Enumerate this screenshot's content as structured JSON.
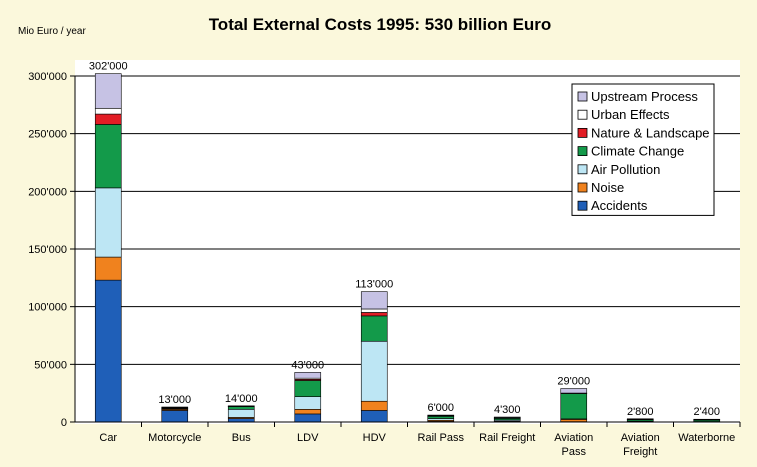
{
  "chart_data": {
    "type": "bar",
    "stacked": true,
    "title": "Total External Costs 1995: 530 billion Euro",
    "ylabel": "Mio Euro / year",
    "xlabel": "",
    "ylim": [
      0,
      300000
    ],
    "yticks": [
      0,
      50000,
      100000,
      150000,
      200000,
      250000,
      300000
    ],
    "ytick_labels": [
      "0",
      "50'000",
      "100'000",
      "150'000",
      "200'000",
      "250'000",
      "300'000"
    ],
    "grid": true,
    "legend_position": "top-right",
    "categories": [
      [
        "Car"
      ],
      [
        "Motorcycle"
      ],
      [
        "Bus"
      ],
      [
        "LDV"
      ],
      [
        "HDV"
      ],
      [
        "Rail Pass"
      ],
      [
        "Rail Freight"
      ],
      [
        "Aviation",
        "Pass"
      ],
      [
        "Aviation",
        "Freight"
      ],
      [
        "Waterborne"
      ]
    ],
    "total_labels": [
      "302'000",
      "13'000",
      "14'000",
      "43'000",
      "113'000",
      "6'000",
      "4'300",
      "29'000",
      "2'800",
      "2'400"
    ],
    "series": [
      {
        "name": "Accidents",
        "color": "#1f5fb8",
        "values": [
          123000,
          10000,
          3000,
          7000,
          10000,
          500,
          300,
          300,
          0,
          0
        ]
      },
      {
        "name": "Noise",
        "color": "#f0821e",
        "values": [
          20000,
          1000,
          1000,
          4000,
          8000,
          1000,
          500,
          2000,
          300,
          0
        ]
      },
      {
        "name": "Air Pollution",
        "color": "#bde6f4",
        "values": [
          60000,
          500,
          7000,
          11000,
          52000,
          1500,
          1000,
          400,
          500,
          400
        ]
      },
      {
        "name": "Climate Change",
        "color": "#139a4a",
        "values": [
          55000,
          500,
          2500,
          14000,
          22000,
          2000,
          1500,
          22000,
          1500,
          1500
        ]
      },
      {
        "name": "Nature & Landscape",
        "color": "#e21d25",
        "values": [
          9000,
          200,
          300,
          1000,
          3000,
          300,
          200,
          300,
          100,
          100
        ]
      },
      {
        "name": "Urban Effects",
        "color": "#ffffff",
        "values": [
          5000,
          300,
          100,
          1000,
          3000,
          200,
          200,
          100,
          0,
          0
        ]
      },
      {
        "name": "Upstream Process",
        "color": "#c6c2e4",
        "values": [
          30000,
          500,
          100,
          5000,
          15000,
          500,
          600,
          3900,
          400,
          400
        ]
      }
    ],
    "legend_order": [
      "Upstream Process",
      "Urban Effects",
      "Nature & Landscape",
      "Climate Change",
      "Air Pollution",
      "Noise",
      "Accidents"
    ],
    "background_color": "#fbf8dc",
    "plot_background_color": "#ffffff"
  }
}
